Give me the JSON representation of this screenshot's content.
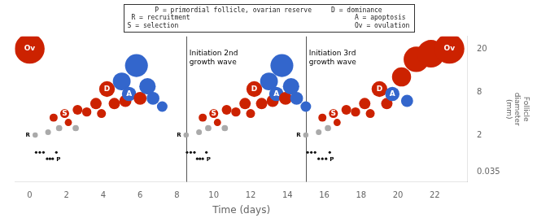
{
  "chart_data": {
    "type": "scatter",
    "xlabel": "Time (days)",
    "ylabel": "Follicle\ndiameter\n(mm)",
    "xlim": [
      -0.8,
      23.8
    ],
    "xticks": [
      0,
      2,
      4,
      6,
      8,
      10,
      12,
      14,
      16,
      18,
      20,
      22
    ],
    "ylim": [
      0.0119,
      26
    ],
    "yticks": [
      0.035,
      2,
      8,
      20
    ],
    "grid": false,
    "x": [
      0.0,
      0.3,
      0.35,
      0.55,
      0.75,
      0.95,
      1.1,
      1.25,
      1.45,
      1.0,
      1.6,
      1.3,
      1.9,
      2.1,
      2.5,
      2.6,
      3.1,
      3.6,
      3.9,
      4.2,
      4.6,
      5.0,
      5.2,
      5.4,
      5.8,
      6.0,
      6.4,
      6.7,
      7.2,
      8.5,
      8.55,
      8.75,
      8.95,
      9.1,
      9.25,
      9.4,
      9.6,
      9.2,
      9.7,
      9.4,
      10.0,
      10.2,
      10.6,
      10.7,
      11.2,
      11.7,
      12.0,
      12.2,
      12.6,
      13.0,
      13.2,
      13.4,
      13.7,
      13.9,
      14.2,
      14.5,
      15.0,
      15.0,
      15.1,
      15.3,
      15.5,
      15.7,
      15.9,
      16.1,
      16.3,
      15.7,
      16.2,
      15.9,
      16.5,
      16.7,
      17.2,
      17.7,
      18.2,
      18.5,
      19.0,
      19.4,
      19.7,
      20.2,
      20.5,
      21.0,
      21.8,
      22.8
    ],
    "values": [
      20,
      2.0,
      0.3,
      0.3,
      0.3,
      0.15,
      0.15,
      0.15,
      0.3,
      2.2,
      2.5,
      3.5,
      4.0,
      3.0,
      2.5,
      4.5,
      4.2,
      5.5,
      4.0,
      8.5,
      5.5,
      10.0,
      6.0,
      7.5,
      14.0,
      6.5,
      9.0,
      6.5,
      5.0,
      2.0,
      0.3,
      0.3,
      0.3,
      0.15,
      0.15,
      0.15,
      0.3,
      2.2,
      2.5,
      3.5,
      4.0,
      3.0,
      2.5,
      4.5,
      4.2,
      5.5,
      4.0,
      8.5,
      5.5,
      10.0,
      6.0,
      7.5,
      14.0,
      6.5,
      9.0,
      6.5,
      5.0,
      2.0,
      0.3,
      0.3,
      0.3,
      0.15,
      0.15,
      0.15,
      0.3,
      2.2,
      2.5,
      3.5,
      4.0,
      3.0,
      4.5,
      4.2,
      5.5,
      4.0,
      8.5,
      5.5,
      7.5,
      11.0,
      6.0,
      16.0,
      18.0,
      20
    ],
    "colors": [
      "#cc2200",
      "#aaaaaa",
      "#111111",
      "#111111",
      "#111111",
      "#111111",
      "#111111",
      "#111111",
      "#111111",
      "#aaaaaa",
      "#aaaaaa",
      "#cc2200",
      "#cc2200",
      "#cc2200",
      "#aaaaaa",
      "#cc2200",
      "#cc2200",
      "#cc2200",
      "#cc2200",
      "#cc2200",
      "#cc2200",
      "#3366cc",
      "#cc2200",
      "#3366cc",
      "#3366cc",
      "#cc2200",
      "#3366cc",
      "#3366cc",
      "#3366cc",
      "#aaaaaa",
      "#111111",
      "#111111",
      "#111111",
      "#111111",
      "#111111",
      "#111111",
      "#111111",
      "#aaaaaa",
      "#aaaaaa",
      "#cc2200",
      "#cc2200",
      "#cc2200",
      "#aaaaaa",
      "#cc2200",
      "#cc2200",
      "#cc2200",
      "#cc2200",
      "#cc2200",
      "#cc2200",
      "#3366cc",
      "#cc2200",
      "#3366cc",
      "#3366cc",
      "#cc2200",
      "#3366cc",
      "#3366cc",
      "#3366cc",
      "#aaaaaa",
      "#111111",
      "#111111",
      "#111111",
      "#111111",
      "#111111",
      "#111111",
      "#111111",
      "#aaaaaa",
      "#aaaaaa",
      "#cc2200",
      "#cc2200",
      "#cc2200",
      "#cc2200",
      "#cc2200",
      "#cc2200",
      "#cc2200",
      "#cc2200",
      "#cc2200",
      "#3366cc",
      "#cc2200",
      "#3366cc",
      "#cc2200",
      "#cc2200",
      "#cc2200"
    ],
    "point_labels": [
      "Ov",
      "R",
      null,
      null,
      null,
      null,
      null,
      "P",
      null,
      null,
      null,
      null,
      "S",
      null,
      null,
      null,
      null,
      null,
      null,
      "D",
      null,
      null,
      null,
      "A",
      null,
      null,
      null,
      null,
      null,
      "R",
      null,
      null,
      null,
      null,
      null,
      "P",
      null,
      null,
      null,
      null,
      "S",
      null,
      null,
      null,
      null,
      null,
      null,
      "D",
      null,
      null,
      null,
      "A",
      null,
      null,
      null,
      null,
      null,
      "R",
      null,
      null,
      null,
      null,
      null,
      "P",
      null,
      null,
      null,
      null,
      "S",
      null,
      null,
      null,
      null,
      null,
      "D",
      null,
      "A",
      null,
      null,
      null,
      null,
      "Ov"
    ],
    "vlines": [
      8.5,
      15.0
    ],
    "annotations": [
      {
        "x": 8.5,
        "y": 19.5,
        "text": "Initiation 2nd\ngrowth wave"
      },
      {
        "x": 15.0,
        "y": 19.5,
        "text": "Initiation 3rd\ngrowth wave"
      }
    ],
    "text_box": "P = primordial follicle, ovarian reserve     D = dominance\nR = recruitment                                          A = apoptosis\nS = selection                                             Ov = ovulation"
  }
}
